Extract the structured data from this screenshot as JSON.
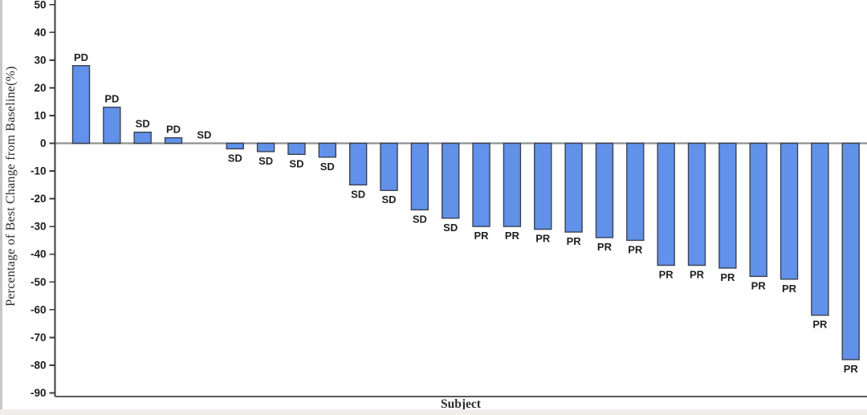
{
  "chart_data": {
    "type": "bar",
    "subtype": "waterfall",
    "title": "",
    "xlabel": "Subject",
    "ylabel": "Percentage of Best Change from Baseline(%)",
    "ylim": [
      -90,
      50
    ],
    "ytick_interval": 10,
    "yticks": [
      50,
      40,
      30,
      20,
      10,
      0,
      -10,
      -20,
      -30,
      -40,
      -50,
      -60,
      -70,
      -80,
      -90
    ],
    "grid": false,
    "legend_position": "none",
    "zero_reference_line": 0,
    "x_categories_shown": false,
    "points": [
      {
        "label": "PD",
        "value": 28
      },
      {
        "label": "PD",
        "value": 13
      },
      {
        "label": "SD",
        "value": 4
      },
      {
        "label": "PD",
        "value": 2
      },
      {
        "label": "SD",
        "value": 0
      },
      {
        "label": "SD",
        "value": -2
      },
      {
        "label": "SD",
        "value": -3
      },
      {
        "label": "SD",
        "value": -4
      },
      {
        "label": "SD",
        "value": -5
      },
      {
        "label": "SD",
        "value": -15
      },
      {
        "label": "SD",
        "value": -17
      },
      {
        "label": "SD",
        "value": -24
      },
      {
        "label": "SD",
        "value": -27
      },
      {
        "label": "PR",
        "value": -30
      },
      {
        "label": "PR",
        "value": -30
      },
      {
        "label": "PR",
        "value": -31
      },
      {
        "label": "PR",
        "value": -32
      },
      {
        "label": "PR",
        "value": -34
      },
      {
        "label": "PR",
        "value": -35
      },
      {
        "label": "PR",
        "value": -44
      },
      {
        "label": "PR",
        "value": -44
      },
      {
        "label": "PR",
        "value": -45
      },
      {
        "label": "PR",
        "value": -48
      },
      {
        "label": "PR",
        "value": -49
      },
      {
        "label": "PR",
        "value": -62
      },
      {
        "label": "PR",
        "value": -78
      }
    ],
    "colors": {
      "bar_fill": "#6291EA",
      "bar_border": "#3A4252",
      "axis": "#3C3C3C",
      "zero_line": "#909090",
      "text": "#1C1C1C"
    }
  }
}
